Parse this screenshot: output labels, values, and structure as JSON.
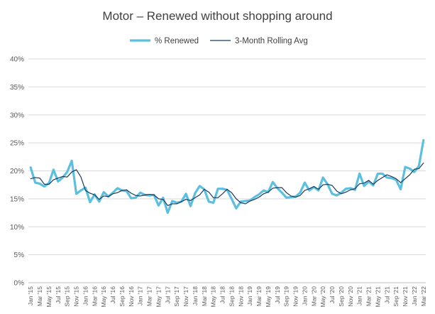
{
  "chart_data": {
    "type": "line",
    "title": "Motor – Renewed without shopping around",
    "xlabel": "",
    "ylabel": "",
    "ylim": [
      0,
      40
    ],
    "yticks": [
      "0%",
      "5%",
      "10%",
      "15%",
      "20%",
      "25%",
      "30%",
      "35%",
      "40%"
    ],
    "x": [
      "Jan '15",
      "Feb '15",
      "Mar '15",
      "Apr '15",
      "May '15",
      "Jun '15",
      "Jul '15",
      "Aug '15",
      "Sep '15",
      "Oct '15",
      "Nov '15",
      "Dec '15",
      "Jan '16",
      "Feb '16",
      "Mar '16",
      "Apr '16",
      "May '16",
      "Jun '16",
      "Jul '16",
      "Aug '16",
      "Sep '16",
      "Oct '16",
      "Nov '16",
      "Dec '16",
      "Jan '17",
      "Feb '17",
      "Mar '17",
      "Apr '17",
      "May '17",
      "Jun '17",
      "Jul '17",
      "Aug '17",
      "Sep '17",
      "Oct '17",
      "Nov '17",
      "Dec '17",
      "Jan '18",
      "Feb '18",
      "Mar '18",
      "Apr '18",
      "May '18",
      "Jun '18",
      "Jul '18",
      "Aug '18",
      "Sep '18",
      "Oct '18",
      "Nov '18",
      "Dec '18",
      "Jan '19",
      "Feb '19",
      "Mar '19",
      "Apr '19",
      "May '19",
      "Jun '19",
      "Jul '19",
      "Aug '19",
      "Sep '19",
      "Oct '19",
      "Nov '19",
      "Dec '19",
      "Jan '20",
      "Feb '20",
      "Mar '20",
      "Apr '20",
      "May '20",
      "Jun '20",
      "Jul '20",
      "Aug '20",
      "Sep '20",
      "Oct '20",
      "Nov '20",
      "Dec '20",
      "Jan '21",
      "Feb '21",
      "Mar '21",
      "Apr '21",
      "May '21",
      "Jun '21",
      "Jul '21",
      "Aug '21",
      "Sep '21",
      "Oct '21",
      "Nov '21",
      "Dec '21",
      "Jan '22",
      "Feb '22",
      "Mar '22"
    ],
    "xtick_labels": [
      "Jan '15",
      "Mar '15",
      "May '15",
      "Jul '15",
      "Sep '15",
      "Nov '15",
      "Jan '16",
      "Mar '16",
      "May '16",
      "Jul '16",
      "Sep '16",
      "Nov '16",
      "Jan '17",
      "Mar '17",
      "May '17",
      "Jul '17",
      "Sep '17",
      "Nov '17",
      "Jan '18",
      "Mar '18",
      "May '18",
      "Jul '18",
      "Sep '18",
      "Nov '18",
      "Jan '19",
      "Mar '19",
      "May '19",
      "Jul '19",
      "Sep '19",
      "Nov '19",
      "Jan '20",
      "Mar '20",
      "May '20",
      "Jul '20",
      "Sep '20",
      "Nov '20",
      "Jan '21",
      "Mar '21",
      "May '21",
      "Jul '21",
      "Sep '21",
      "Nov '21",
      "Jan '22",
      "Mar '22"
    ],
    "series": [
      {
        "name": "% Renewed",
        "color": "#5bc0e0",
        "values": [
          20.6,
          17.9,
          17.7,
          17.2,
          17.8,
          20.2,
          18.1,
          18.8,
          19.8,
          21.8,
          15.9,
          16.5,
          17.0,
          14.4,
          15.8,
          14.5,
          16.2,
          15.4,
          16.1,
          16.9,
          16.5,
          16.4,
          15.1,
          15.2,
          16.1,
          15.7,
          15.6,
          15.7,
          13.8,
          15.2,
          12.5,
          14.6,
          14.3,
          14.5,
          15.9,
          13.7,
          16.0,
          17.3,
          16.7,
          14.5,
          14.3,
          16.8,
          16.8,
          16.6,
          15.0,
          13.3,
          14.5,
          14.6,
          14.7,
          15.3,
          15.8,
          16.5,
          16.2,
          18.0,
          16.9,
          16.1,
          15.2,
          15.3,
          15.4,
          16.1,
          17.9,
          16.5,
          17.1,
          16.5,
          18.8,
          17.6,
          15.9,
          15.6,
          16.1,
          16.8,
          16.9,
          16.6,
          19.5,
          17.3,
          18.1,
          17.4,
          19.5,
          19.5,
          18.8,
          18.7,
          18.4,
          16.7,
          20.7,
          20.4,
          19.8,
          20.9,
          25.5
        ]
      },
      {
        "name": "3-Month Rolling Avg",
        "color": "#1f3a5a",
        "values": [
          18.6,
          18.8,
          18.7,
          17.6,
          17.6,
          18.4,
          18.7,
          19.0,
          18.9,
          19.8,
          20.2,
          18.9,
          16.5,
          16.0,
          15.7,
          14.9,
          15.5,
          15.4,
          15.9,
          16.1,
          16.5,
          16.6,
          16.0,
          15.6,
          15.5,
          15.7,
          15.8,
          15.7,
          15.0,
          14.9,
          13.8,
          14.1,
          14.1,
          14.5,
          14.9,
          14.7,
          15.2,
          15.7,
          16.7,
          16.2,
          15.2,
          15.2,
          15.9,
          16.7,
          16.1,
          15.0,
          14.3,
          14.1,
          14.6,
          14.9,
          15.3,
          15.9,
          16.2,
          16.9,
          17.0,
          17.0,
          16.1,
          15.5,
          15.3,
          15.6,
          16.5,
          16.8,
          17.2,
          16.7,
          17.5,
          17.6,
          17.4,
          16.4,
          15.9,
          16.2,
          16.6,
          16.8,
          17.7,
          17.8,
          18.3,
          17.6,
          18.3,
          18.8,
          19.3,
          19.0,
          18.6,
          17.9,
          18.6,
          19.3,
          20.3,
          20.4,
          21.4
        ]
      }
    ],
    "legend": {
      "position": "top-center",
      "labels": [
        "% Renewed",
        "3-Month Rolling Avg"
      ]
    },
    "grid": {
      "horizontal": true,
      "vertical": false
    }
  }
}
